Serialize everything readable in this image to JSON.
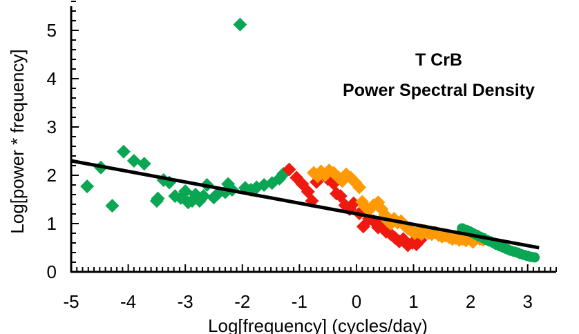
{
  "chart_data": {
    "type": "scatter",
    "title": "T CrB",
    "subtitle": "Power Spectral Density",
    "xlabel": "Log[frequency] (cycles/day)",
    "ylabel": "Log[power * frequency]",
    "xlim": [
      -5,
      3.5
    ],
    "ylim": [
      0,
      5.5
    ],
    "xticks": [
      -5,
      -4,
      -3,
      -2,
      -1,
      0,
      1,
      2,
      3
    ],
    "yticks": [
      0,
      1,
      2,
      3,
      4,
      5
    ],
    "grid": false,
    "colors": {
      "green": "#0aa653",
      "red": "#ee1a10",
      "orange": "#ff9a06",
      "fit": "#000000"
    },
    "fit_line": {
      "x": [
        -5,
        3.2
      ],
      "y": [
        2.3,
        0.5
      ]
    },
    "series": [
      {
        "name": "green-diamonds",
        "marker": "diamond",
        "color": "#0aa653",
        "points": [
          [
            -4.72,
            1.77
          ],
          [
            -4.48,
            2.16
          ],
          [
            -4.28,
            1.37
          ],
          [
            -4.08,
            2.49
          ],
          [
            -3.9,
            2.3
          ],
          [
            -3.72,
            2.24
          ],
          [
            -3.5,
            1.47
          ],
          [
            -3.48,
            1.52
          ],
          [
            -3.38,
            1.9
          ],
          [
            -3.28,
            1.85
          ],
          [
            -3.18,
            1.57
          ],
          [
            -3.08,
            1.53
          ],
          [
            -3.0,
            1.67
          ],
          [
            -2.95,
            1.44
          ],
          [
            -2.88,
            1.47
          ],
          [
            -2.82,
            1.6
          ],
          [
            -2.75,
            1.47
          ],
          [
            -2.68,
            1.57
          ],
          [
            -2.62,
            1.8
          ],
          [
            -2.5,
            1.54
          ],
          [
            -2.42,
            1.63
          ],
          [
            -2.3,
            1.65
          ],
          [
            -2.25,
            1.82
          ],
          [
            -2.18,
            1.7
          ],
          [
            -2.04,
            5.12
          ],
          [
            -1.95,
            1.74
          ],
          [
            -1.85,
            1.7
          ],
          [
            -1.75,
            1.75
          ],
          [
            -1.62,
            1.8
          ],
          [
            -1.48,
            1.84
          ],
          [
            -1.35,
            1.93
          ],
          [
            -1.28,
            2.03
          ]
        ]
      },
      {
        "name": "red-diamonds",
        "marker": "diamond",
        "color": "#ee1a10",
        "points": [
          [
            -1.18,
            2.12
          ],
          [
            -1.05,
            1.95
          ],
          [
            -0.95,
            1.82
          ],
          [
            -0.85,
            1.66
          ],
          [
            -0.78,
            1.47
          ],
          [
            -0.7,
            1.86
          ],
          [
            -0.6,
            2.05
          ],
          [
            -0.5,
            1.92
          ],
          [
            -0.4,
            1.83
          ],
          [
            -0.35,
            1.62
          ],
          [
            -0.28,
            1.57
          ],
          [
            -0.2,
            1.38
          ],
          [
            -0.12,
            1.3
          ],
          [
            -0.05,
            1.42
          ],
          [
            0.05,
            1.21
          ],
          [
            0.12,
            0.94
          ],
          [
            0.22,
            1.1
          ],
          [
            0.3,
            1.05
          ],
          [
            0.38,
            0.92
          ],
          [
            0.45,
            1.0
          ],
          [
            0.52,
            0.83
          ],
          [
            0.6,
            0.78
          ],
          [
            0.68,
            0.7
          ],
          [
            0.75,
            0.63
          ],
          [
            0.82,
            0.68
          ],
          [
            0.9,
            0.55
          ],
          [
            0.98,
            0.6
          ],
          [
            1.05,
            0.57
          ],
          [
            1.12,
            0.66
          ]
        ]
      },
      {
        "name": "orange-diamonds",
        "marker": "diamond",
        "color": "#ff9a06",
        "points": [
          [
            -0.75,
            2.05
          ],
          [
            -0.68,
            1.98
          ],
          [
            -0.62,
            2.08
          ],
          [
            -0.55,
            2.0
          ],
          [
            -0.48,
            2.1
          ],
          [
            -0.4,
            2.05
          ],
          [
            -0.32,
            1.96
          ],
          [
            -0.25,
            1.88
          ],
          [
            -0.18,
            2.02
          ],
          [
            -0.1,
            1.95
          ],
          [
            -0.02,
            1.85
          ],
          [
            0.05,
            1.75
          ],
          [
            0.1,
            1.45
          ],
          [
            0.15,
            1.35
          ],
          [
            0.22,
            1.28
          ],
          [
            0.3,
            1.38
          ],
          [
            0.38,
            1.44
          ],
          [
            0.44,
            1.3
          ],
          [
            0.5,
            1.18
          ],
          [
            0.55,
            1.05
          ],
          [
            0.6,
            1.0
          ],
          [
            0.66,
            1.1
          ],
          [
            0.72,
            1.02
          ],
          [
            0.78,
            1.05
          ],
          [
            0.84,
            0.96
          ],
          [
            0.9,
            0.9
          ],
          [
            0.96,
            0.85
          ],
          [
            1.02,
            0.8
          ],
          [
            1.08,
            0.83
          ],
          [
            1.14,
            0.78
          ],
          [
            1.2,
            0.85
          ],
          [
            1.26,
            0.8
          ],
          [
            1.32,
            0.78
          ],
          [
            1.38,
            0.82
          ],
          [
            1.44,
            0.76
          ],
          [
            1.5,
            0.73
          ],
          [
            1.56,
            0.75
          ],
          [
            1.62,
            0.72
          ],
          [
            1.68,
            0.68
          ],
          [
            1.74,
            0.7
          ],
          [
            1.8,
            0.66
          ],
          [
            1.86,
            0.68
          ],
          [
            1.92,
            0.65
          ],
          [
            1.98,
            0.72
          ],
          [
            2.04,
            0.62
          ],
          [
            2.1,
            0.7
          ],
          [
            2.16,
            0.68
          ],
          [
            2.22,
            0.66
          ]
        ]
      },
      {
        "name": "green-circles",
        "marker": "circle",
        "color": "#0aa653",
        "points": [
          [
            1.85,
            0.9
          ],
          [
            1.92,
            0.87
          ],
          [
            1.98,
            0.84
          ],
          [
            2.04,
            0.8
          ],
          [
            2.1,
            0.77
          ],
          [
            2.16,
            0.73
          ],
          [
            2.22,
            0.7
          ],
          [
            2.28,
            0.66
          ],
          [
            2.34,
            0.63
          ],
          [
            2.4,
            0.6
          ],
          [
            2.46,
            0.56
          ],
          [
            2.52,
            0.53
          ],
          [
            2.58,
            0.5
          ],
          [
            2.64,
            0.47
          ],
          [
            2.7,
            0.44
          ],
          [
            2.76,
            0.42
          ],
          [
            2.82,
            0.4
          ],
          [
            2.88,
            0.37
          ],
          [
            2.94,
            0.35
          ],
          [
            3.0,
            0.33
          ],
          [
            3.06,
            0.31
          ],
          [
            3.12,
            0.3
          ]
        ]
      }
    ]
  }
}
